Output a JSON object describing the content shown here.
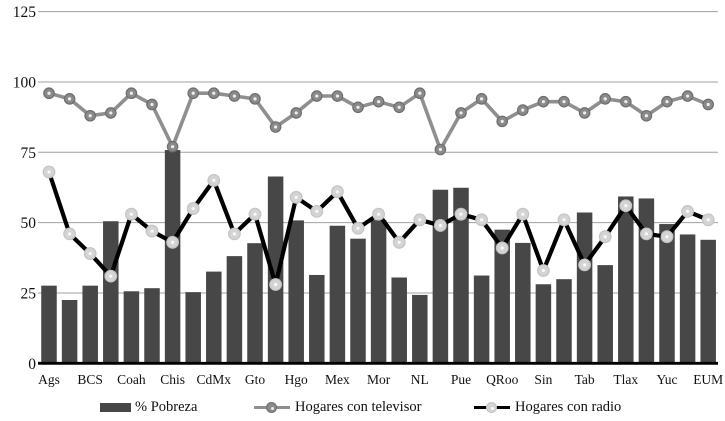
{
  "chart_data": {
    "type": "bar",
    "combo": "bar + two line series with circular markers",
    "title": "",
    "xlabel": "",
    "ylabel": "",
    "y_axis": {
      "min": 0,
      "max": 125,
      "ticks": [
        0,
        25,
        50,
        75,
        100,
        125
      ],
      "gridlines": true
    },
    "x_tick_labels": [
      "Ags",
      "",
      "BCS",
      "",
      "Coah",
      "",
      "Chis",
      "",
      "CdMx",
      "",
      "Gto",
      "",
      "Hgo",
      "",
      "Mex",
      "",
      "Mor",
      "",
      "NL",
      "",
      "Pue",
      "",
      "QRoo",
      "",
      "Sin",
      "",
      "Tab",
      "",
      "Tlax",
      "",
      "Yuc",
      "",
      "EUM"
    ],
    "legend_position": "bottom",
    "series": [
      {
        "name": "% Pobreza",
        "type": "bar",
        "color": "#474747",
        "values": [
          27.6,
          22.5,
          27.6,
          50.5,
          25.6,
          26.7,
          75.8,
          25.3,
          32.6,
          38.1,
          42.7,
          66.4,
          50.8,
          31.4,
          48.9,
          44.3,
          50.9,
          30.5,
          24.3,
          61.7,
          62.4,
          31.2,
          47.5,
          42.8,
          28.1,
          29.9,
          53.6,
          34.9,
          59.3,
          58.6,
          49.5,
          45.8,
          43.9
        ]
      },
      {
        "name": "Hogares con televisor",
        "type": "line",
        "color": "#8f8f8f",
        "marker_fill": "#8a8a8a",
        "marker_stroke": "#6e6e6e",
        "values": [
          96,
          94,
          88,
          89,
          96,
          92,
          77,
          96,
          96,
          95,
          94,
          84,
          89,
          95,
          95,
          91,
          93,
          91,
          96,
          76,
          89,
          94,
          86,
          90,
          93,
          93,
          89,
          94,
          93,
          88,
          93,
          95,
          92
        ]
      },
      {
        "name": "Hogares con radio",
        "type": "line",
        "color": "#000000",
        "marker_fill": "#d4d4d4",
        "marker_stroke": "#c4c4c4",
        "values": [
          68,
          46,
          39,
          31,
          53,
          47,
          43,
          55,
          65,
          46,
          53,
          28,
          59,
          54,
          61,
          48,
          53,
          43,
          51,
          49,
          53,
          51,
          41,
          53,
          33,
          51,
          35,
          45,
          56,
          46,
          45,
          54,
          51
        ]
      }
    ],
    "colors": {
      "gridline": "#a0a0a0",
      "axis_line": "#000000",
      "text": "#111111"
    }
  }
}
